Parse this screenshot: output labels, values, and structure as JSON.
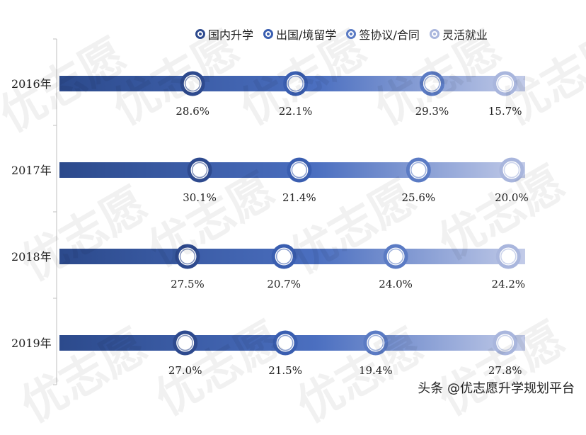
{
  "chart_data": {
    "type": "bar",
    "categories": [
      "2016年",
      "2017年",
      "2018年",
      "2019年"
    ],
    "series": [
      {
        "name": "国内升学",
        "color": "#2e4a8e",
        "values": [
          28.6,
          30.1,
          27.5,
          27.0
        ]
      },
      {
        "name": "出国/境留学",
        "color": "#3a5eb0",
        "values": [
          22.1,
          21.4,
          20.7,
          21.5
        ]
      },
      {
        "name": "签协议/合同",
        "color": "#5b7bc4",
        "values": [
          29.3,
          25.6,
          24.0,
          19.4
        ]
      },
      {
        "name": "灵活就业",
        "color": "#a9b6dd",
        "values": [
          15.7,
          20.0,
          24.2,
          27.8
        ]
      }
    ],
    "value_suffix": "%",
    "stacked": true,
    "legend_position": "top-right",
    "grid": false
  },
  "watermark": {
    "text": "优志愿"
  },
  "credit": {
    "text": "头条 @优志愿升学规划平台"
  }
}
